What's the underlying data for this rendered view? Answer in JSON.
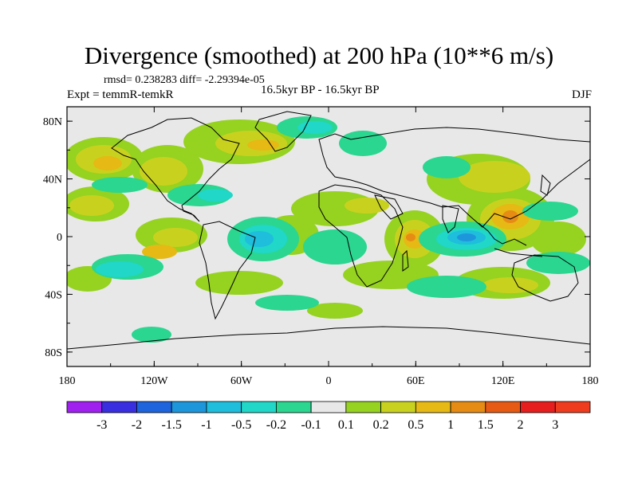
{
  "header": {
    "title": "Divergence (smoothed) at 200 hPa (10**6 m/s)",
    "stats": "rmsd= 0.238283 diff= -2.29394e-05",
    "experiment": "Expt = temmR-temkR",
    "period": "16.5kyr BP - 16.5kyr BP",
    "season": "DJF"
  },
  "axes": {
    "lat_labels": [
      "80N",
      "40N",
      "0",
      "40S",
      "80S"
    ],
    "lat_values": [
      80,
      40,
      0,
      -40,
      -80
    ],
    "lon_labels": [
      "180",
      "120W",
      "60W",
      "0",
      "60E",
      "120E",
      "180"
    ],
    "lon_values": [
      -180,
      -120,
      -60,
      0,
      60,
      120,
      180
    ]
  },
  "colorbar": {
    "levels": [
      "-3",
      "-2",
      "-1.5",
      "-1",
      "-0.5",
      "-0.2",
      "-0.1",
      "0.1",
      "0.2",
      "0.5",
      "1",
      "1.5",
      "2",
      "3"
    ],
    "colors": [
      "#a020f0",
      "#3a2fe0",
      "#1e64dc",
      "#1e96dc",
      "#1ebedc",
      "#20d7c8",
      "#2ad690",
      "#e8e8e8",
      "#96d220",
      "#c8d21e",
      "#e6b914",
      "#e68c14",
      "#e65a14",
      "#e61e1e",
      "#f03c1e"
    ]
  },
  "map": {
    "background": "#e8e8e8",
    "positive_colors": [
      "#96d220",
      "#c8d21e",
      "#e6b914",
      "#e68c14"
    ],
    "negative_colors": [
      "#2ad690",
      "#20d7c8",
      "#1ebedc",
      "#1e96dc"
    ]
  }
}
